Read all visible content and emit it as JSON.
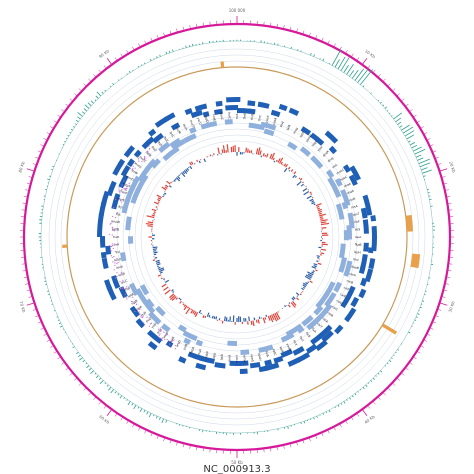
{
  "title": "NC_000913.3",
  "genome": {
    "length_kb": 100
  },
  "tick_labels": [
    {
      "pos_kb": 0,
      "text": "100 000"
    },
    {
      "pos_kb": 10,
      "text": "10 Kb"
    },
    {
      "pos_kb": 20,
      "text": "20 Kb"
    },
    {
      "pos_kb": 30,
      "text": "30 Kb"
    },
    {
      "pos_kb": 40,
      "text": "40 Kb"
    },
    {
      "pos_kb": 50,
      "text": "50 Kb"
    },
    {
      "pos_kb": 60,
      "text": "60 Kb"
    },
    {
      "pos_kb": 70,
      "text": "70 Kb"
    },
    {
      "pos_kb": 80,
      "text": "80 Kb"
    },
    {
      "pos_kb": 90,
      "text": "90 Kb"
    }
  ],
  "colors": {
    "outer_ring": "#d6199a",
    "teal_track": "#2aa18a",
    "brown_ring": "#c89a5a",
    "orange_marks": "#e8a04a",
    "gene_dark": "#1f5fb5",
    "gene_light": "#8fb0dc",
    "gc_positive": "#e0443b",
    "gc_negative": "#2f5fa8",
    "magenta_dots": "#c86cd8",
    "grid": "#cfd8e8"
  },
  "gene_labels": [
    "thrL",
    "thrA",
    "thrB",
    "thrC",
    "yaaX",
    "yaaA",
    "yaaJ",
    "talB",
    "mog",
    "satP",
    "yaaW",
    "htgA",
    "yaaI",
    "dnaK",
    "dnaJ",
    "insL",
    "mokC",
    "hokC",
    "nhaA",
    "nhaR",
    "insB",
    "insA",
    "rpsT",
    "ribF",
    "ileS",
    "lspA",
    "fkpB",
    "ispH",
    "rihC",
    "dapB",
    "carA",
    "carB",
    "caiF",
    "caiE",
    "caiD",
    "caiC",
    "caiB",
    "caiA",
    "caiT",
    "fixA",
    "fixB",
    "fixC",
    "fixX",
    "yaaU",
    "kefF",
    "kefC",
    "folA",
    "apaH",
    "apaG",
    "rsmA",
    "pdxA",
    "surA",
    "lptD",
    "djlA",
    "yabP",
    "rluA",
    "hepA",
    "polB",
    "araD",
    "araA",
    "araB",
    "araC",
    "yabI",
    "thiQ",
    "thiP",
    "tbpA",
    "sgrR",
    "setA",
    "leuD",
    "leuC",
    "leuB",
    "leuA",
    "leuO",
    "ilvI",
    "ilvH",
    "fruR",
    "yabB",
    "mraW",
    "ftsL",
    "ftsI",
    "murE",
    "murF",
    "mraY",
    "murD",
    "ftsW",
    "murG",
    "murC",
    "ddlB",
    "ftsQ",
    "ftsA",
    "ftsZ",
    "lpxC",
    "secM",
    "secA",
    "mutT",
    "yacG",
    "zapD",
    "coaE",
    "guaC",
    "hofC"
  ],
  "chart_data": {
    "type": "circular-genome-map",
    "title": "NC_000913.3",
    "genome_length_kb": 100,
    "tracks": [
      "coordinate ring",
      "skew / coverage track",
      "feature ring",
      "forward-strand genes",
      "reverse-strand genes",
      "GC content",
      "GC skew"
    ]
  }
}
